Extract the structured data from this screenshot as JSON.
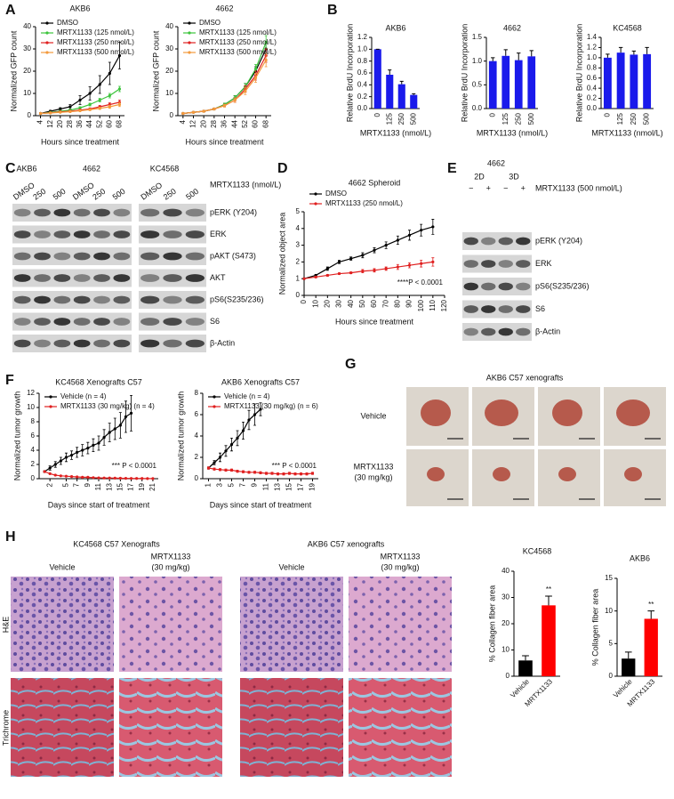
{
  "panel_labels": [
    "A",
    "B",
    "C",
    "D",
    "E",
    "F",
    "G",
    "H"
  ],
  "chart_data": [
    {
      "type": "line",
      "title": "AKB6",
      "x": [
        4,
        12,
        20,
        28,
        36,
        44,
        52,
        60,
        68
      ],
      "xlim": [
        0,
        72
      ],
      "xticks": [
        4,
        12,
        20,
        28,
        36,
        44,
        52,
        60,
        68
      ],
      "ylim": [
        0,
        40
      ],
      "yticks": [
        0,
        10,
        20,
        30,
        40
      ],
      "xlabel": "Hours since treatment",
      "ylabel": "Normalized GFP count",
      "legend": "upper left",
      "series": [
        {
          "name": "DMSO",
          "color": "#000000",
          "values": [
            1,
            2,
            3,
            4,
            7,
            10,
            14,
            19,
            27
          ],
          "errors": [
            0.2,
            0.4,
            0.6,
            1,
            2,
            3,
            4,
            5,
            6
          ]
        },
        {
          "name": "MRTX1133 (125 nmol/L)",
          "color": "#3cc43c",
          "values": [
            1,
            1.5,
            2,
            2.5,
            3.5,
            5,
            7,
            9,
            12
          ],
          "errors": [
            0.1,
            0.2,
            0.3,
            0.4,
            0.5,
            0.6,
            0.8,
            1,
            1.2
          ]
        },
        {
          "name": "MRTX1133 (250 nmol/L)",
          "color": "#e02020",
          "values": [
            1,
            1.3,
            1.7,
            2,
            2.5,
            3,
            4,
            5,
            6
          ],
          "errors": [
            0.1,
            0.2,
            0.2,
            0.3,
            0.4,
            0.5,
            0.6,
            0.8,
            1
          ]
        },
        {
          "name": "MRTX1133 (500 nmol/L)",
          "color": "#f39a3c",
          "values": [
            1,
            1.2,
            1.5,
            1.8,
            2.2,
            2.7,
            3.3,
            4,
            5
          ],
          "errors": [
            0.1,
            0.2,
            0.2,
            0.3,
            0.3,
            0.4,
            0.5,
            0.7,
            0.9
          ]
        }
      ]
    },
    {
      "type": "line",
      "title": "4662",
      "x": [
        4,
        12,
        20,
        28,
        36,
        44,
        52,
        60,
        68
      ],
      "xlim": [
        0,
        72
      ],
      "xticks": [
        4,
        12,
        20,
        28,
        36,
        44,
        52,
        60,
        68
      ],
      "ylim": [
        0,
        40
      ],
      "yticks": [
        0,
        10,
        20,
        30,
        40
      ],
      "xlabel": "Hours since treatment",
      "ylabel": "Normalized GFP count",
      "legend": "upper left",
      "series": [
        {
          "name": "DMSO",
          "color": "#000000",
          "values": [
            1,
            1.5,
            2,
            3,
            5,
            8,
            13,
            20,
            30
          ],
          "errors": [
            0.1,
            0.2,
            0.3,
            0.4,
            0.6,
            1,
            1.5,
            2,
            3
          ]
        },
        {
          "name": "MRTX1133 (125 nmol/L)",
          "color": "#3cc43c",
          "values": [
            1,
            1.5,
            2,
            3,
            5,
            8,
            13,
            21,
            33
          ],
          "errors": [
            0.1,
            0.2,
            0.3,
            0.4,
            0.6,
            1,
            1.5,
            2,
            3
          ]
        },
        {
          "name": "MRTX1133 (250 nmol/L)",
          "color": "#e02020",
          "values": [
            1,
            1.5,
            2,
            3,
            4.5,
            7,
            12,
            18,
            27
          ],
          "errors": [
            0.1,
            0.2,
            0.3,
            0.4,
            0.6,
            1,
            1.5,
            2,
            3
          ]
        },
        {
          "name": "MRTX1133 (500 nmol/L)",
          "color": "#f39a3c",
          "values": [
            1,
            1.5,
            2,
            3,
            4.5,
            7,
            11,
            17,
            25
          ],
          "errors": [
            0.1,
            0.2,
            0.3,
            0.4,
            0.6,
            1,
            1.5,
            2,
            3
          ]
        }
      ]
    },
    {
      "type": "bar",
      "title": "AKB6",
      "categories": [
        "0",
        "125",
        "250",
        "500"
      ],
      "values": [
        1,
        0.57,
        0.41,
        0.23
      ],
      "errors": [
        0,
        0.08,
        0.05,
        0.02
      ],
      "color": "#1a1aeb",
      "ylim": [
        0,
        1.2
      ],
      "yticks": [
        {
          "value": 0,
          "label": "0.0"
        },
        0.2,
        0.4,
        0.6,
        0.8,
        {
          "value": 1,
          "label": "1.0"
        },
        1.2
      ],
      "xlabel": "MRTX1133 (nmol/L)",
      "ylabel": "Relative BrdU Incorporation"
    },
    {
      "type": "bar",
      "title": "4662",
      "categories": [
        "0",
        "125",
        "250",
        "500"
      ],
      "values": [
        1,
        1.11,
        1.02,
        1.1
      ],
      "errors": [
        0.07,
        0.13,
        0.15,
        0.12
      ],
      "color": "#1a1aeb",
      "ylim": [
        0,
        1.5
      ],
      "yticks": [
        {
          "value": 0,
          "label": "0.0"
        },
        0.5,
        {
          "value": 1,
          "label": "1.0"
        },
        1.5
      ],
      "xlabel": "MRTX1133 (nmol/L)",
      "ylabel": "Relative BrdU Incorporation"
    },
    {
      "type": "bar",
      "title": "KC4568",
      "categories": [
        "0",
        "125",
        "250",
        "500"
      ],
      "values": [
        1,
        1.1,
        1.06,
        1.07
      ],
      "errors": [
        0.07,
        0.1,
        0.07,
        0.13
      ],
      "color": "#1a1aeb",
      "ylim": [
        0,
        1.4
      ],
      "yticks": [
        {
          "value": 0,
          "label": "0.0"
        },
        0.2,
        0.4,
        0.6,
        0.8,
        {
          "value": 1,
          "label": "1.0"
        },
        1.2,
        1.4
      ],
      "xlabel": "MRTX1133 (nmol/L)",
      "ylabel": "Relative BrdU Incorporation"
    },
    {
      "type": "line",
      "title": "4662 Spheroid",
      "x": [
        0,
        10,
        20,
        30,
        40,
        50,
        60,
        70,
        80,
        90,
        100,
        110
      ],
      "xlim": [
        0,
        120
      ],
      "xticks": [
        0,
        10,
        20,
        30,
        40,
        50,
        60,
        70,
        80,
        90,
        100,
        110,
        120
      ],
      "ylim": [
        0,
        5
      ],
      "yticks": [
        0,
        1,
        2,
        3,
        4,
        5
      ],
      "xlabel": "Hours since treatment",
      "ylabel": "Normalized object area",
      "legend": "upper left",
      "annotation": "****P < 0.0001",
      "series": [
        {
          "name": "DMSO",
          "color": "#000000",
          "values": [
            1,
            1.2,
            1.6,
            2,
            2.2,
            2.4,
            2.7,
            3,
            3.3,
            3.6,
            3.9,
            4.1
          ],
          "errors": [
            0,
            0.05,
            0.1,
            0.1,
            0.1,
            0.15,
            0.15,
            0.2,
            0.25,
            0.3,
            0.35,
            0.45
          ]
        },
        {
          "name": "MRTX1133 (250 nmol/L)",
          "color": "#e02020",
          "values": [
            1,
            1.1,
            1.2,
            1.3,
            1.35,
            1.45,
            1.5,
            1.6,
            1.7,
            1.8,
            1.9,
            2
          ],
          "errors": [
            0,
            0.05,
            0.05,
            0.05,
            0.05,
            0.1,
            0.1,
            0.1,
            0.15,
            0.15,
            0.2,
            0.25
          ]
        }
      ]
    },
    {
      "type": "line",
      "title": "KC4568 Xenografts C57",
      "xlim": [
        0,
        22
      ],
      "xticks": [
        2,
        5,
        7,
        9,
        11,
        13,
        15,
        17,
        19,
        21
      ],
      "ylim": [
        0,
        12
      ],
      "yticks": [
        0,
        2,
        4,
        6,
        8,
        10,
        12
      ],
      "xlabel": "Days since start of treatment",
      "ylabel": "Normalized tumor growth",
      "legend": "upper left",
      "annotation": "*** P < 0.0001",
      "series": [
        {
          "name": "Vehicle (n = 4)",
          "color": "#000000",
          "x": [
            1,
            2,
            3,
            4,
            5,
            6,
            7,
            8,
            9,
            10,
            11,
            12,
            13,
            14,
            15,
            16,
            17
          ],
          "values": [
            1,
            1.5,
            2,
            2.5,
            3,
            3.3,
            3.7,
            4,
            4.3,
            4.7,
            5,
            5.8,
            6.5,
            7,
            7.5,
            8.7,
            9.2
          ],
          "errors": [
            0.1,
            0.3,
            0.4,
            0.5,
            0.6,
            0.6,
            0.7,
            0.8,
            0.8,
            0.9,
            1,
            1.1,
            1.3,
            1.5,
            1.8,
            2.2,
            2.5
          ]
        },
        {
          "name": "MRTX1133 (30 mg/kg) (n = 4)",
          "color": "#e02020",
          "x": [
            1,
            2,
            3,
            4,
            5,
            6,
            7,
            8,
            9,
            10,
            11,
            12,
            13,
            14,
            15,
            16,
            17,
            18,
            19,
            20,
            21
          ],
          "values": [
            1,
            0.7,
            0.5,
            0.4,
            0.35,
            0.3,
            0.25,
            0.2,
            0.2,
            0.15,
            0.12,
            0.1,
            0.1,
            0.08,
            0.06,
            0.05,
            0.04,
            0.03,
            0.03,
            0.02,
            0.02
          ]
        }
      ]
    },
    {
      "type": "line",
      "title": "AKB6 Xenografts C57",
      "xlim": [
        0,
        20
      ],
      "xticks": [
        1,
        3,
        5,
        7,
        9,
        11,
        13,
        15,
        17,
        19
      ],
      "ylim": [
        0,
        8
      ],
      "yticks": [
        0,
        2,
        4,
        6,
        8
      ],
      "xlabel": "Days since start of treatment",
      "ylabel": "Normalized tumor growth",
      "legend": "upper left",
      "annotation": "*** P < 0.0001",
      "series": [
        {
          "name": "Vehicle (n = 4)",
          "color": "#000000",
          "x": [
            1,
            2,
            3,
            4,
            5,
            6,
            7,
            8,
            9,
            10
          ],
          "values": [
            1,
            1.5,
            2,
            2.6,
            3.2,
            3.8,
            4.5,
            5.5,
            6,
            6.5
          ],
          "errors": [
            0.1,
            0.2,
            0.4,
            0.5,
            0.6,
            0.7,
            0.8,
            0.9,
            1,
            0.6
          ]
        },
        {
          "name": "MRTX1133 (30 mg/kg) (n = 6)",
          "color": "#e02020",
          "x": [
            1,
            2,
            3,
            4,
            5,
            6,
            7,
            8,
            9,
            10,
            11,
            12,
            13,
            14,
            15,
            16,
            17,
            18,
            19
          ],
          "values": [
            1,
            0.9,
            0.85,
            0.8,
            0.8,
            0.7,
            0.65,
            0.6,
            0.6,
            0.55,
            0.5,
            0.5,
            0.45,
            0.45,
            0.5,
            0.45,
            0.45,
            0.45,
            0.5
          ],
          "errors": [
            0.1,
            0.1,
            0.1,
            0.1,
            0.1,
            0.1,
            0.1,
            0.1,
            0.1,
            0.1,
            0.1,
            0.1,
            0.1,
            0.1,
            0.1,
            0.1,
            0.1,
            0.1,
            0.1
          ]
        }
      ]
    },
    {
      "type": "bar",
      "title": "KC4568",
      "categories": [
        "Vehicle",
        "MRTX1133"
      ],
      "values": [
        6,
        27
      ],
      "errors": [
        1.8,
        3.5
      ],
      "colors": [
        "#000000",
        "#ff0000"
      ],
      "ylim": [
        0,
        40
      ],
      "yticks": [
        0,
        10,
        20,
        30,
        40
      ],
      "ylabel": "% Collagen fiber area",
      "annotation": "**"
    },
    {
      "type": "bar",
      "title": "AKB6",
      "categories": [
        "Vehicle",
        "MRTX1133"
      ],
      "values": [
        2.7,
        8.8
      ],
      "errors": [
        1,
        1.2
      ],
      "colors": [
        "#000000",
        "#ff0000"
      ],
      "ylim": [
        0,
        15
      ],
      "yticks": [
        0,
        5,
        10,
        15
      ],
      "ylabel": "% Collagen fiber area",
      "annotation": "**"
    }
  ],
  "blot_c": {
    "cell_lines": [
      "AKB6",
      "4662",
      "KC4568"
    ],
    "lanes": [
      "DMSO",
      "250",
      "500",
      "DMSO",
      "250",
      "500",
      "DMSO",
      "250",
      "500"
    ],
    "treatment": "MRTX1133 (nmol/L)",
    "rows": [
      "pERK (Y204)",
      "ERK",
      "pAKT (S473)",
      "AKT",
      "pS6(S235/236)",
      "S6",
      "β-Actin"
    ]
  },
  "blot_e": {
    "cell_line": "4662",
    "conditions": [
      "2D",
      "3D"
    ],
    "lanes": [
      "−",
      "+",
      "−",
      "+"
    ],
    "treatment": "MRTX1133 (500 nmol/L)",
    "rows": [
      "pERK (Y204)",
      "ERK",
      "pS6(S235/236)",
      "S6",
      "β-Actin"
    ]
  },
  "xenograft_photos": {
    "title": "AKB6 C57 xenografts",
    "rows": [
      [
        "Vehicle"
      ],
      [
        "MRTX1133",
        "(30 mg/kg)"
      ]
    ]
  },
  "histology": {
    "groups": [
      {
        "title": "KC4568 C57 Xenografts",
        "columns": [
          [
            "Vehicle"
          ],
          [
            "MRTX1133",
            "(30 mg/kg)"
          ]
        ]
      },
      {
        "title": "AKB6 C57 xenografts",
        "columns": [
          [
            "Vehicle"
          ],
          [
            "MRTX1133",
            "(30 mg/kg)"
          ]
        ]
      }
    ],
    "stains": [
      "H&E",
      "Trichrome"
    ]
  }
}
